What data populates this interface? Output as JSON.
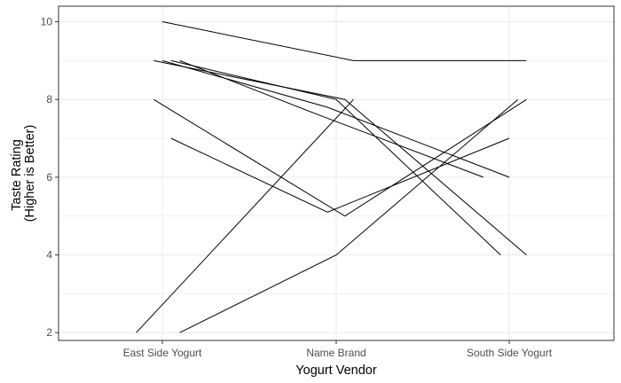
{
  "chart_data": {
    "type": "line",
    "title": "",
    "xlabel": "Yogurt Vendor",
    "ylabel_lines": [
      "Taste Rating",
      "(Higher is Better)"
    ],
    "categories": [
      "East Side Yogurt",
      "Name Brand",
      "South Side Yogurt"
    ],
    "ylim": [
      1.8,
      10.4
    ],
    "yticks": [
      2,
      4,
      6,
      8,
      10
    ],
    "grid": true,
    "legend": "none",
    "colors": {
      "line": "#000000",
      "grid": "#ebebeb",
      "panel_border": "#333333",
      "tick": "#333333"
    },
    "series": [
      {
        "x": [
          0.0,
          1.1,
          2.1
        ],
        "values": [
          10,
          9,
          9
        ]
      },
      {
        "x": [
          -0.05,
          1.05,
          2.1
        ],
        "values": [
          9,
          8,
          4
        ]
      },
      {
        "x": [
          0.05,
          1.0,
          1.95
        ],
        "values": [
          9,
          8,
          4
        ]
      },
      {
        "x": [
          0.0,
          0.95,
          2.0
        ],
        "values": [
          9,
          7.8,
          6
        ]
      },
      {
        "x": [
          0.1,
          0.9,
          1.85
        ],
        "values": [
          9,
          7.6,
          6
        ]
      },
      {
        "x": [
          -0.05,
          1.05,
          2.1
        ],
        "values": [
          8,
          5,
          8
        ]
      },
      {
        "x": [
          0.05,
          0.95,
          2.0
        ],
        "values": [
          7,
          5.1,
          7
        ]
      },
      {
        "x": [
          -0.15,
          1.1
        ],
        "values": [
          2,
          8
        ]
      },
      {
        "x": [
          0.1,
          1.0,
          2.05
        ],
        "values": [
          2,
          4,
          8
        ]
      }
    ]
  }
}
